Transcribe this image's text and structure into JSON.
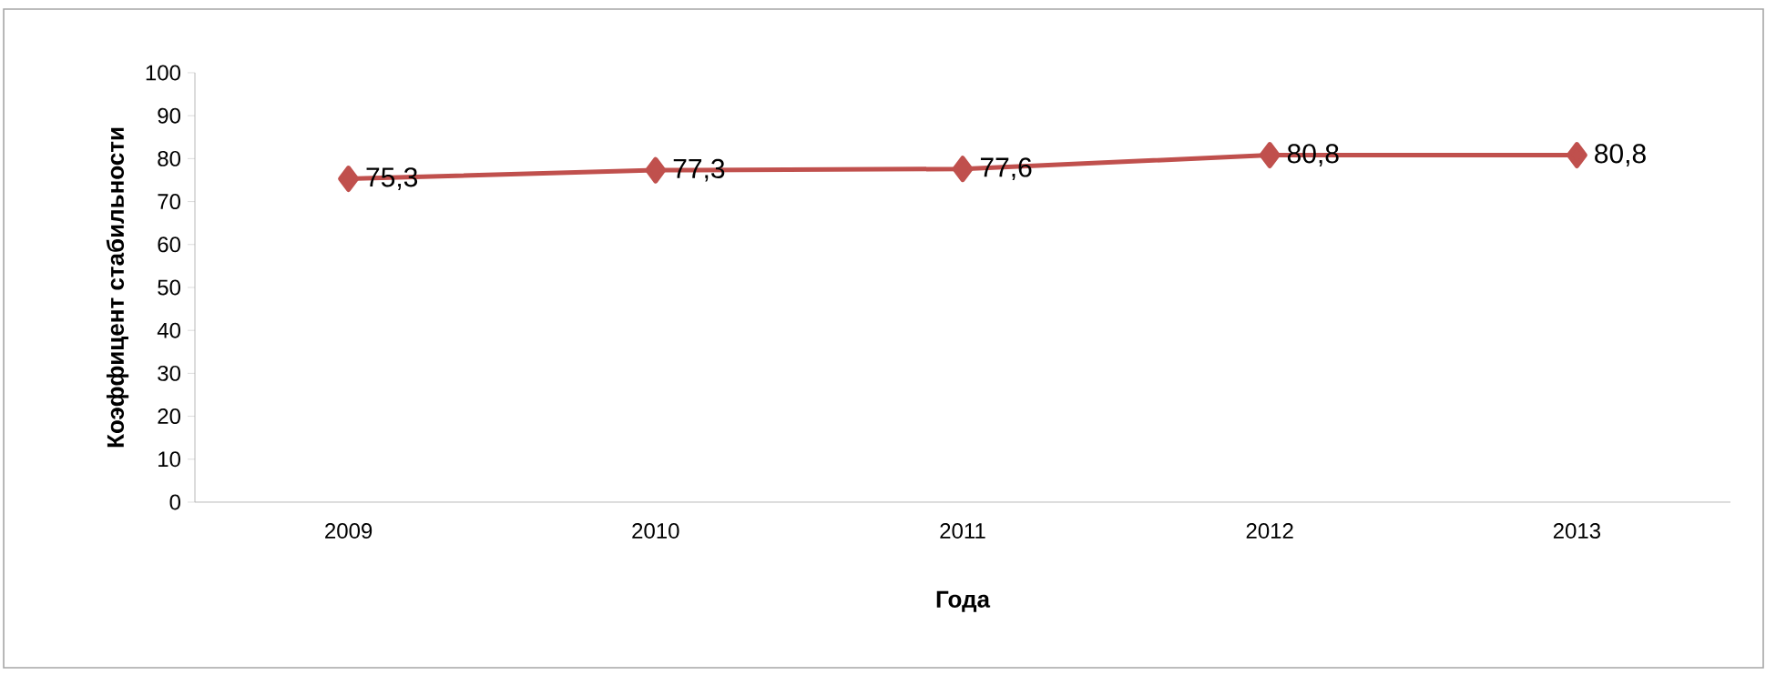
{
  "chart_data": {
    "type": "line",
    "xlabel": "Года",
    "ylabel": "Коэффицент стабильности",
    "categories": [
      "2009",
      "2010",
      "2011",
      "2012",
      "2013"
    ],
    "series": [
      {
        "color": "#c0504d",
        "values": [
          75.3,
          77.3,
          77.6,
          80.8,
          80.8
        ],
        "value_labels": [
          "75,3",
          "77,3",
          "77,6",
          "80,8",
          "80,8"
        ]
      }
    ],
    "ylim": [
      0,
      100
    ],
    "yticks": [
      0,
      10,
      20,
      30,
      40,
      50,
      60,
      70,
      80,
      90,
      100
    ],
    "marker": "diamond",
    "line_style": "solid"
  }
}
